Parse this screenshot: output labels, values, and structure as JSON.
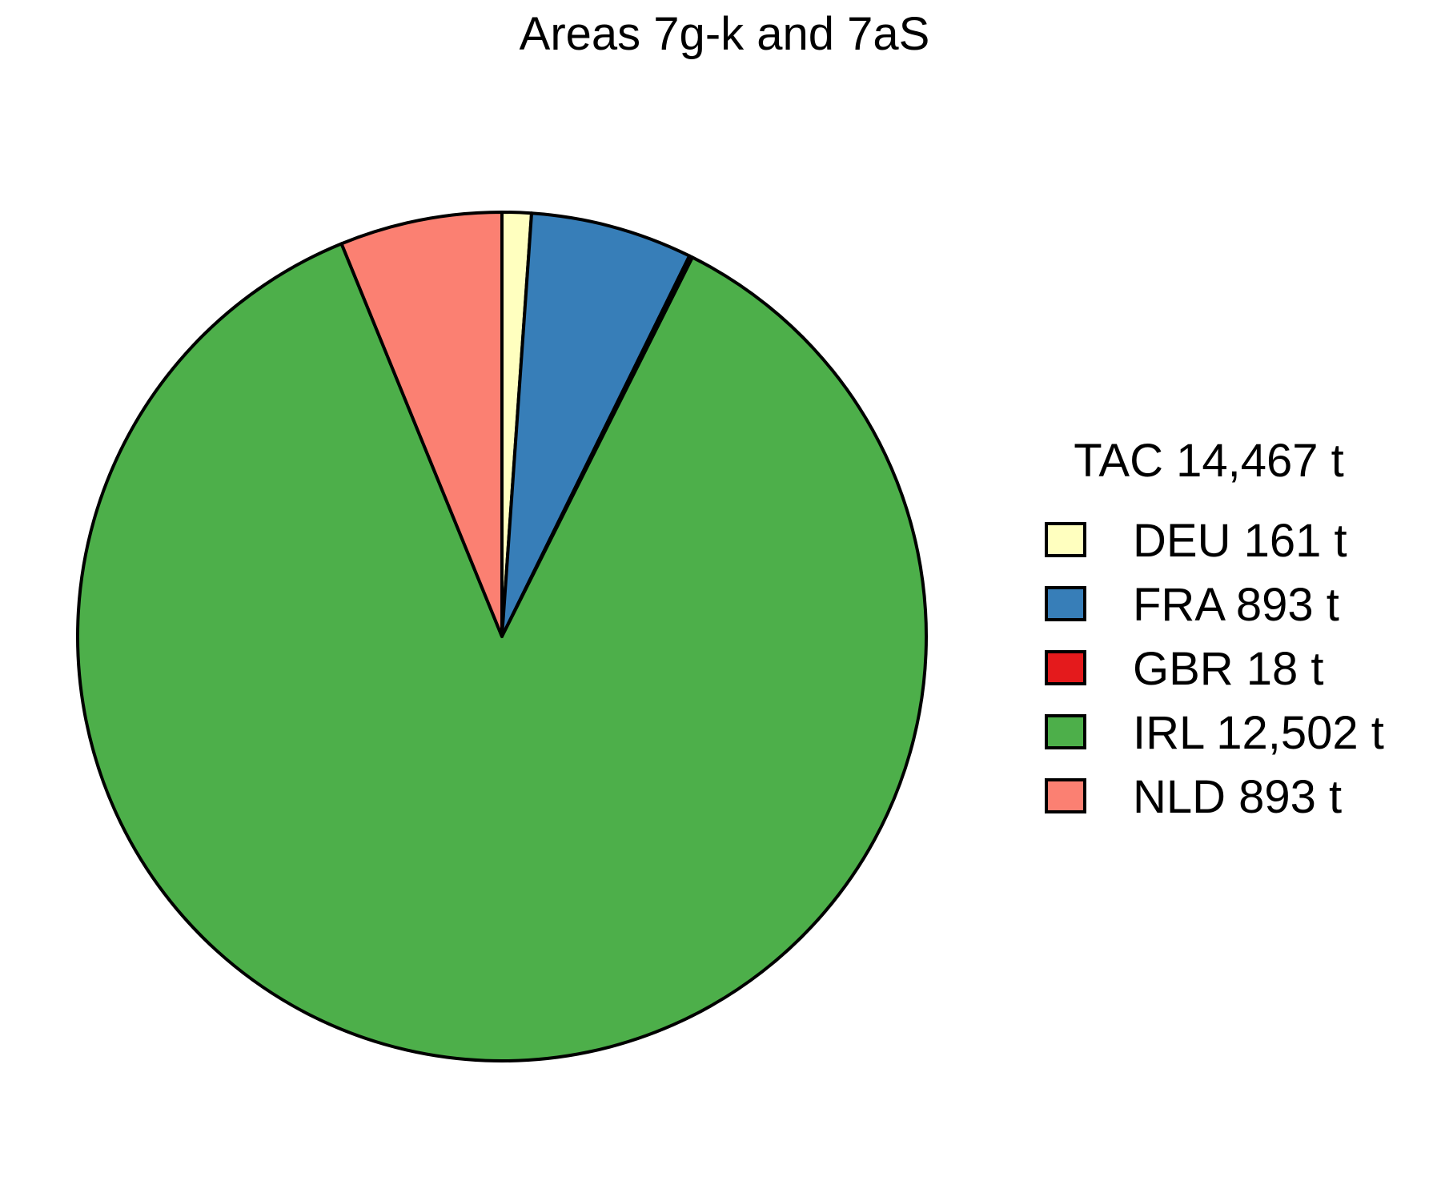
{
  "chart_data": {
    "type": "pie",
    "title": "Areas 7g-k and 7aS",
    "legend_title": "TAC 14,467 t",
    "legend_position": "right",
    "unit": "t",
    "slices": [
      {
        "label": "DEU 161 t",
        "value": 161,
        "color": "#FFFFBF"
      },
      {
        "label": "FRA 893 t",
        "value": 893,
        "color": "#377EB8"
      },
      {
        "label": "GBR 18 t",
        "value": 18,
        "color": "#E41A1C"
      },
      {
        "label": "IRL 12,502 t",
        "value": 12502,
        "color": "#4DAF4A"
      },
      {
        "label": "NLD 893 t",
        "value": 893,
        "color": "#FB8072"
      }
    ]
  }
}
